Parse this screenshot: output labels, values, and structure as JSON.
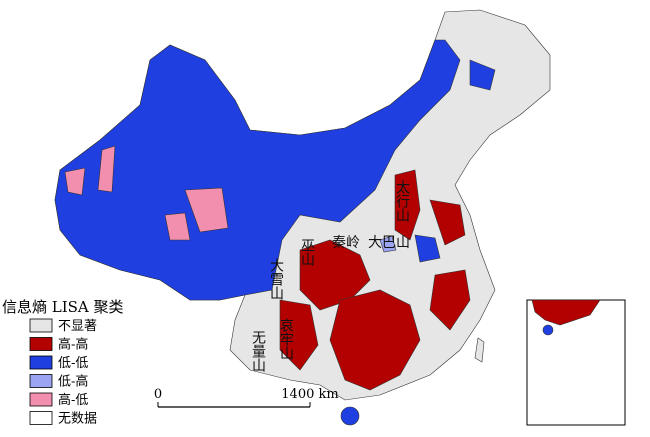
{
  "map": {
    "legend": {
      "title": "信息熵 LISA 聚类",
      "items": [
        {
          "label": "不显著",
          "color": "#e6e6e6"
        },
        {
          "label": "高-高",
          "color": "#b30000"
        },
        {
          "label": "低-低",
          "color": "#1f3fe0"
        },
        {
          "label": "低-高",
          "color": "#9aa4f0"
        },
        {
          "label": "高-低",
          "color": "#f28fae"
        },
        {
          "label": "无数据",
          "color": "#ffffff"
        }
      ]
    },
    "scale": {
      "start": "0",
      "end": "1400 km"
    },
    "labels": [
      {
        "text": "太行山",
        "vertical": true
      },
      {
        "text": "秦岭",
        "vertical": false
      },
      {
        "text": "大巴山",
        "vertical": false
      },
      {
        "text": "巫山",
        "vertical": true
      },
      {
        "text": "大雪山",
        "vertical": true
      },
      {
        "text": "无量山",
        "vertical": true
      },
      {
        "text": "哀牢山",
        "vertical": true
      }
    ]
  }
}
